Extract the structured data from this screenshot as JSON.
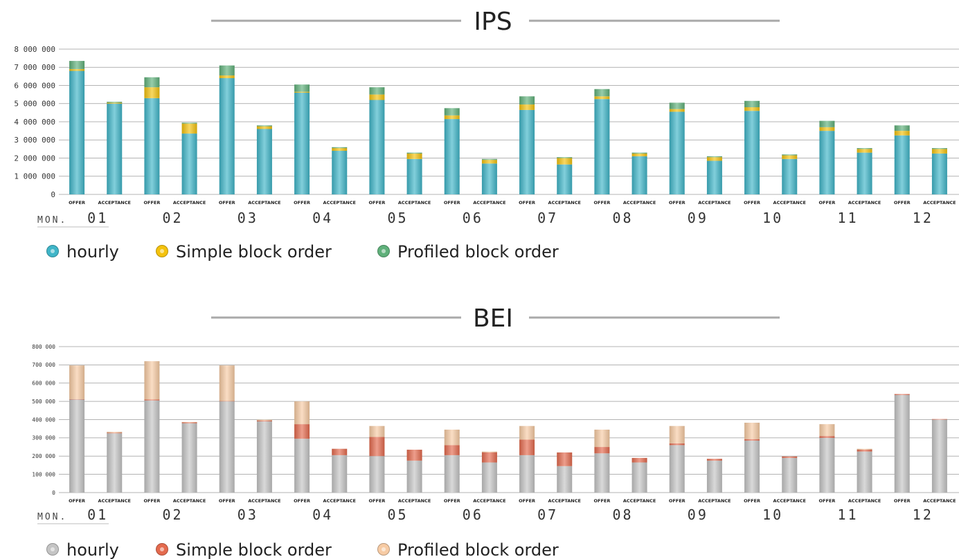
{
  "chart_data": [
    {
      "type": "bar",
      "stacked": true,
      "title": "IPS",
      "mon_label": "MON.",
      "months": [
        "01",
        "02",
        "03",
        "04",
        "05",
        "06",
        "07",
        "08",
        "09",
        "10",
        "11",
        "12"
      ],
      "categories_per_month": [
        "OFFER",
        "ACCEPTANCE"
      ],
      "ylim": [
        0,
        8000000
      ],
      "yticks": [
        0,
        1000000,
        2000000,
        3000000,
        4000000,
        5000000,
        6000000,
        7000000,
        8000000
      ],
      "ytick_labels": [
        "0",
        "1 000 000",
        "2 000 000",
        "3 000 000",
        "4 000 000",
        "5 000 000",
        "6 000 000",
        "7 000 000",
        "8 000 000"
      ],
      "grid": true,
      "legend_position": "bottom-left",
      "series": [
        {
          "name": "hourly",
          "color": "#3fb5c8",
          "values": [
            6800000,
            5000000,
            5300000,
            3350000,
            6400000,
            3600000,
            5600000,
            2400000,
            5200000,
            1950000,
            4150000,
            1700000,
            4650000,
            1650000,
            5250000,
            2100000,
            4550000,
            1850000,
            4600000,
            1950000,
            3500000,
            2300000,
            3250000,
            2250000
          ]
        },
        {
          "name": "Simple block order",
          "color": "#f4c20d",
          "values": [
            100000,
            50000,
            600000,
            550000,
            150000,
            150000,
            50000,
            150000,
            300000,
            300000,
            200000,
            200000,
            300000,
            350000,
            150000,
            150000,
            150000,
            200000,
            200000,
            200000,
            200000,
            200000,
            250000,
            250000
          ]
        },
        {
          "name": "Profiled block order",
          "color": "#5fb07a",
          "values": [
            450000,
            50000,
            550000,
            50000,
            550000,
            50000,
            400000,
            50000,
            400000,
            50000,
            400000,
            50000,
            450000,
            50000,
            400000,
            50000,
            350000,
            50000,
            350000,
            50000,
            350000,
            50000,
            300000,
            50000
          ]
        }
      ]
    },
    {
      "type": "bar",
      "stacked": true,
      "title": "BEI",
      "mon_label": "MON.",
      "months": [
        "01",
        "02",
        "03",
        "04",
        "05",
        "06",
        "07",
        "08",
        "09",
        "10",
        "11",
        "12"
      ],
      "categories_per_month": [
        "OFFER",
        "ACCEPTANCE"
      ],
      "ylim": [
        0,
        800000
      ],
      "yticks": [
        0,
        100000,
        200000,
        300000,
        400000,
        500000,
        600000,
        700000,
        800000
      ],
      "ytick_labels": [
        "0",
        "100 000",
        "200 000",
        "300 000",
        "400 000",
        "500 000",
        "600 000",
        "700 000",
        "800 000"
      ],
      "grid": true,
      "legend_position": "bottom-left",
      "series": [
        {
          "name": "hourly",
          "color": "#c4c4c4",
          "values": [
            510000,
            325000,
            505000,
            380000,
            500000,
            390000,
            295000,
            205000,
            200000,
            175000,
            205000,
            165000,
            205000,
            145000,
            215000,
            165000,
            260000,
            175000,
            285000,
            190000,
            300000,
            225000,
            535000,
            400000
          ]
        },
        {
          "name": "Simple block order",
          "color": "#e46a4e",
          "values": [
            2000,
            3000,
            5000,
            5000,
            2000,
            5000,
            80000,
            35000,
            105000,
            60000,
            55000,
            55000,
            85000,
            75000,
            35000,
            25000,
            10000,
            10000,
            8000,
            8000,
            10000,
            10000,
            5000,
            3000
          ]
        },
        {
          "name": "Profiled block order",
          "color": "#f7cba4",
          "values": [
            185000,
            5000,
            210000,
            2000,
            195000,
            5000,
            125000,
            0,
            60000,
            0,
            85000,
            5000,
            75000,
            0,
            95000,
            0,
            95000,
            0,
            90000,
            0,
            65000,
            5000,
            0,
            0
          ]
        }
      ]
    }
  ]
}
